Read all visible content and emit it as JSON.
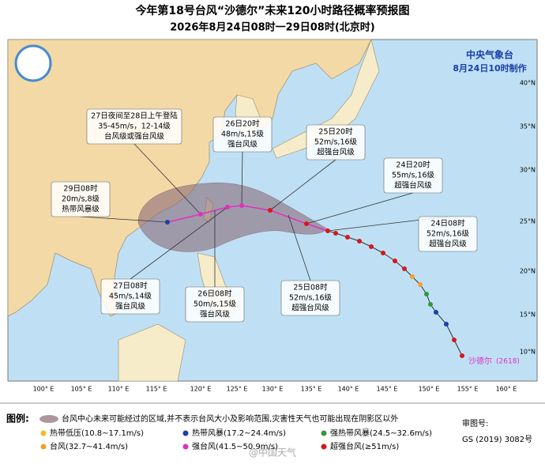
{
  "header": {
    "title": "今年第18号台风“沙德尔”未来120小时路径概率预报图",
    "subtitle": "2026年8月24日08时一29日08时(北京时)"
  },
  "agency": {
    "name": "中央气象台",
    "made": "8月24日10时制作"
  },
  "map": {
    "lon_labels": [
      "100° E",
      "105° E",
      "110° E",
      "115° E",
      "120° E",
      "125° E",
      "130° E",
      "135° E",
      "140° E",
      "145° E",
      "150° E",
      "155° E",
      "160° E"
    ],
    "lat_labels": [
      "40°N",
      "35°N",
      "30°N",
      "25°N",
      "20°N",
      "15°N",
      "10°N"
    ],
    "typhoon_label": "沙德尔",
    "typhoon_code": "(2618)",
    "annotations": [
      {
        "lines": [
          "27日夜间至28日上午登陆",
          "35-45m/s，12-14级",
          "台风级或强台风级"
        ]
      },
      {
        "lines": [
          "26日20时",
          "48m/s,15级",
          "强台风级"
        ]
      },
      {
        "lines": [
          "25日20时",
          "52m/s,16级",
          "超强台风级"
        ]
      },
      {
        "lines": [
          "24日20时",
          "55m/s,16级",
          "超强台风级"
        ]
      },
      {
        "lines": [
          "24日08时",
          "52m/s,16级",
          "超强台风级"
        ]
      },
      {
        "lines": [
          "29日08时",
          "20m/s,8级",
          "热带风暴级"
        ]
      },
      {
        "lines": [
          "27日08时",
          "45m/s,14级",
          "强台风级"
        ]
      },
      {
        "lines": [
          "26日08时",
          "50m/s,15级",
          "强台风级"
        ]
      },
      {
        "lines": [
          "25日08时",
          "52m/s,16级",
          "超强台风级"
        ]
      }
    ]
  },
  "legend": {
    "title": "图例:",
    "cone_text": "台风中心未来可能经过的区域,并不表示台风大小及影响范围,灾害性天气也可能出现在阴影区以外",
    "items": [
      {
        "label": "热带低压(10.8~17.1m/s)",
        "color": "#e8c020"
      },
      {
        "label": "热带风暴(17.2~24.4m/s)",
        "color": "#1a3fa8"
      },
      {
        "label": "强热带风暴(24.5~32.6m/s)",
        "color": "#2e9a3a"
      },
      {
        "label": "台风(32.7~41.4m/s)",
        "color": "#f0a030"
      },
      {
        "label": "强台风(41.5~50.9m/s)",
        "color": "#e030c0"
      },
      {
        "label": "超强台风(≥51m/s)",
        "color": "#d81818"
      }
    ],
    "approval_label": "审图号:",
    "approval_no": "GS (2019) 3082号"
  },
  "watermark": "@中国天气"
}
